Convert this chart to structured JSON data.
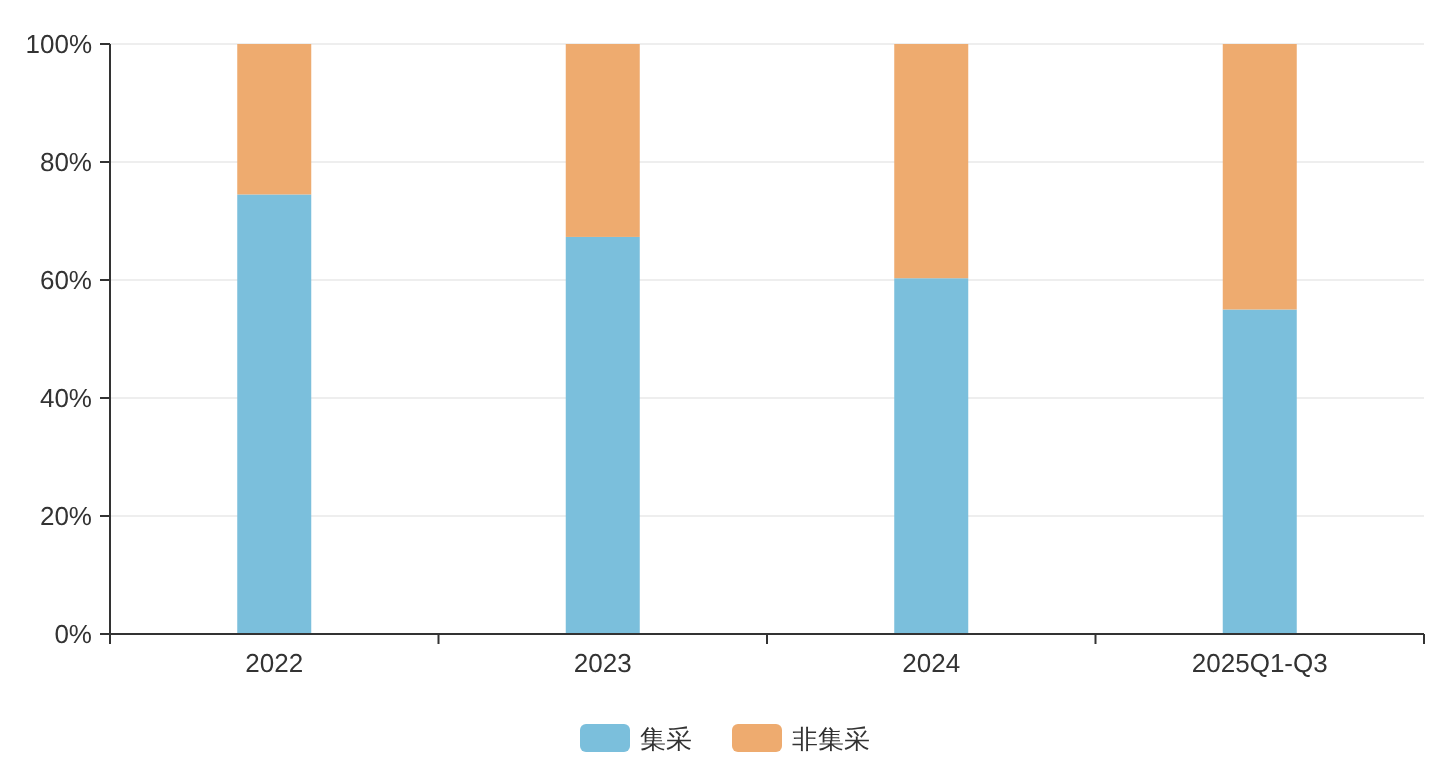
{
  "chart_data": {
    "type": "bar",
    "stacked": true,
    "categories": [
      "2022",
      "2023",
      "2024",
      "2025Q1-Q3"
    ],
    "series": [
      {
        "name": "集采",
        "color": "#7bbfdc",
        "values": [
          74.5,
          67.3,
          60.3,
          55.0
        ]
      },
      {
        "name": "非集采",
        "color": "#eeab6f",
        "values": [
          25.5,
          32.7,
          39.7,
          45.0
        ]
      }
    ],
    "ylim": [
      0,
      100
    ],
    "yticks": [
      {
        "value": 0,
        "label": "0%"
      },
      {
        "value": 20,
        "label": "20%"
      },
      {
        "value": 40,
        "label": "40%"
      },
      {
        "value": 60,
        "label": "60%"
      },
      {
        "value": 80,
        "label": "80%"
      },
      {
        "value": 100,
        "label": "100%"
      }
    ],
    "grid": "y",
    "legend": "bottom"
  }
}
